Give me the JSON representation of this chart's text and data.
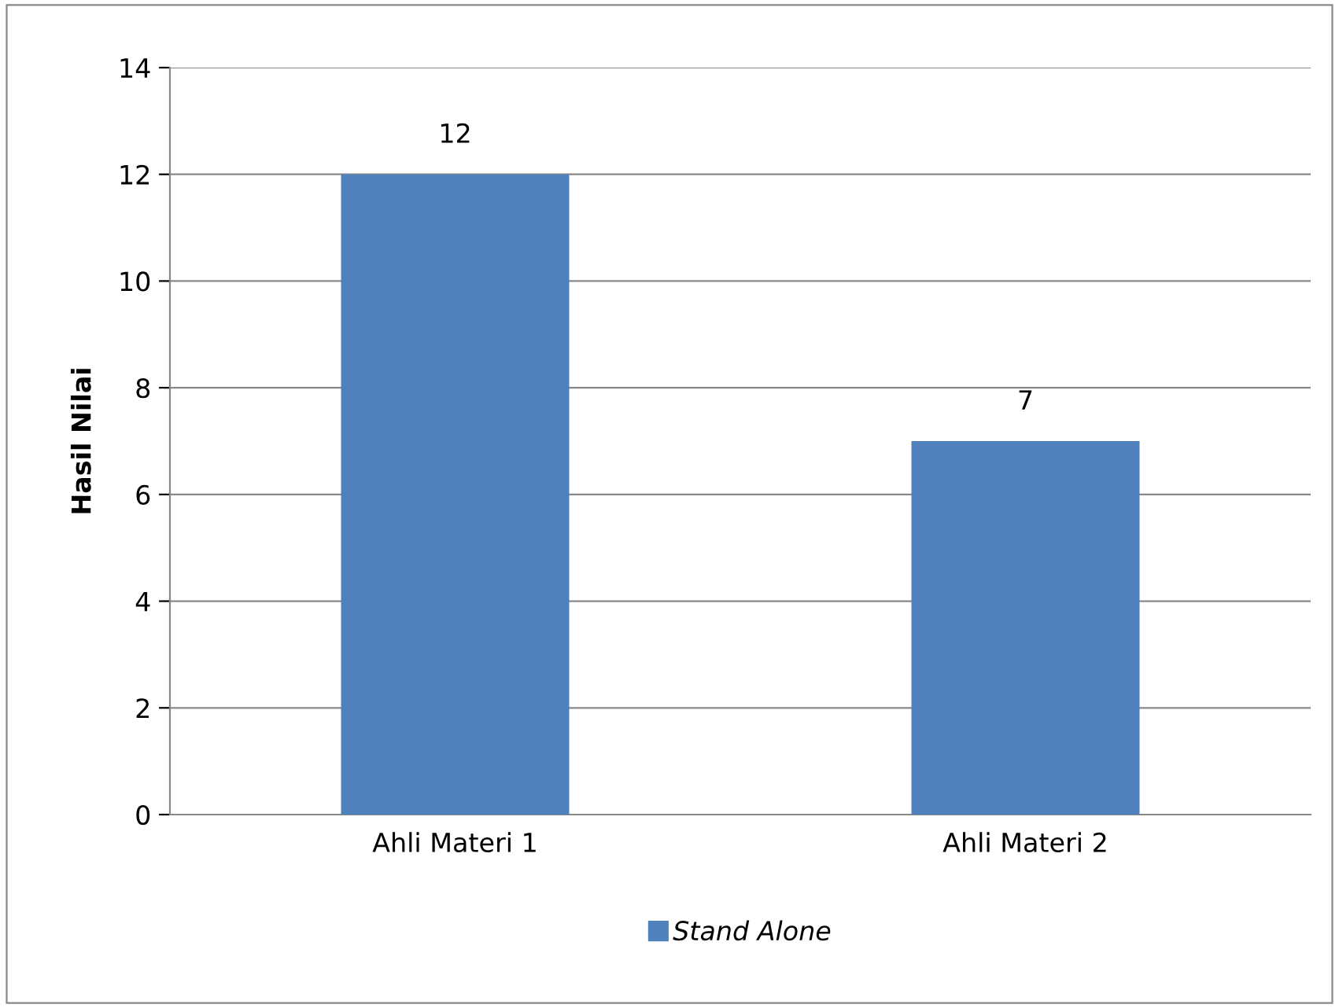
{
  "chart_data": {
    "type": "bar",
    "ylabel": "Hasil Nilai",
    "categories": [
      "Ahli Materi 1",
      "Ahli Materi 2"
    ],
    "series": [
      {
        "name": "Stand Alone",
        "color": "#4f81bd",
        "values": [
          12,
          7
        ]
      }
    ],
    "ylim": [
      0,
      14
    ],
    "yticks": [
      0,
      2,
      4,
      6,
      8,
      10,
      12,
      14
    ],
    "grid": "y",
    "legend": "bottom",
    "data_labels": true
  }
}
